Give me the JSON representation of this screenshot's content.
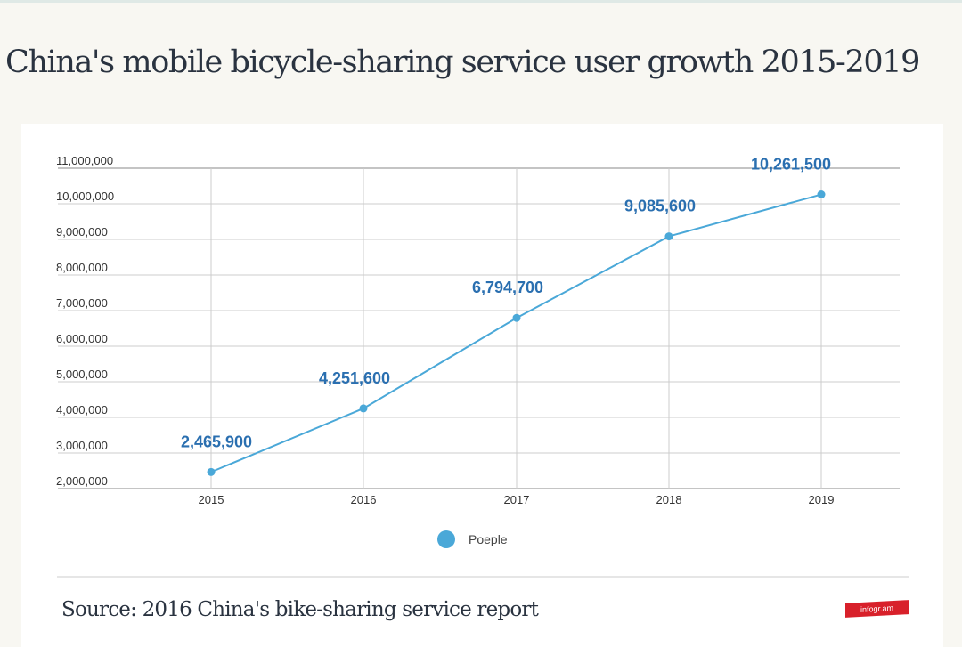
{
  "title": "China's mobile bicycle-sharing service user growth 2015-2019",
  "source": "Source: 2016 China's bike-sharing service report",
  "logo_text": "infogr.am",
  "chart_data": {
    "type": "line",
    "categories": [
      "2015",
      "2016",
      "2017",
      "2018",
      "2019"
    ],
    "series": [
      {
        "name": "Poeple",
        "values": [
          2465900,
          4251600,
          6794700,
          9085600,
          10261500
        ],
        "labels": [
          "2,465,900",
          "4,251,600",
          "6,794,700",
          "9,085,600",
          "10,261,500"
        ],
        "color": "#4aa8d8"
      }
    ],
    "ylim": [
      2000000,
      11000000
    ],
    "yticks": [
      "2,000,000",
      "3,000,000",
      "4,000,000",
      "5,000,000",
      "6,000,000",
      "7,000,000",
      "8,000,000",
      "9,000,000",
      "10,000,000",
      "11,000,000"
    ],
    "grid": true,
    "legend": "bottom",
    "label_color": "#2a6fb0"
  }
}
